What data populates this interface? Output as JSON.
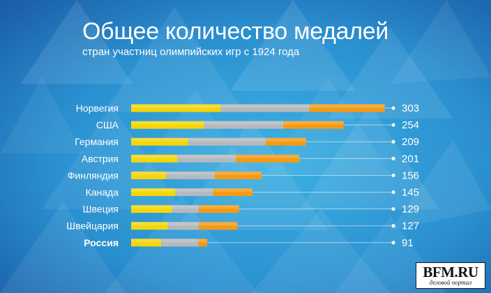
{
  "header": {
    "title": "Общее количество медалей",
    "subtitle": "стран участниц олимпийских игр с 1924 года"
  },
  "logo": {
    "main": "BFM.RU",
    "sub": "деловой портал"
  },
  "colors": {
    "gold": "#f5d60a",
    "silver": "#b5b9bc",
    "bronze": "#f59a13",
    "text": "#ffffff",
    "background": "#2a86c6"
  },
  "chart_data": {
    "type": "bar",
    "orientation": "horizontal",
    "stacked": true,
    "categories": [
      "Норвегия",
      "США",
      "Германия",
      "Австрия",
      "Финляндия",
      "Канада",
      "Швеция",
      "Швейцария",
      "Россия"
    ],
    "totals": [
      "303",
      "254",
      "209",
      "201",
      "156",
      "145",
      "129",
      "127",
      "91"
    ],
    "highlight_category": "Россия",
    "series": [
      {
        "values": [
          107,
          87,
          68,
          55,
          42,
          53,
          49,
          44,
          36
        ]
      },
      {
        "values": [
          106,
          95,
          93,
          70,
          58,
          45,
          32,
          37,
          44
        ]
      },
      {
        "values": [
          90,
          72,
          48,
          76,
          56,
          47,
          48,
          46,
          11
        ]
      }
    ],
    "grid": false,
    "legend": "none"
  }
}
